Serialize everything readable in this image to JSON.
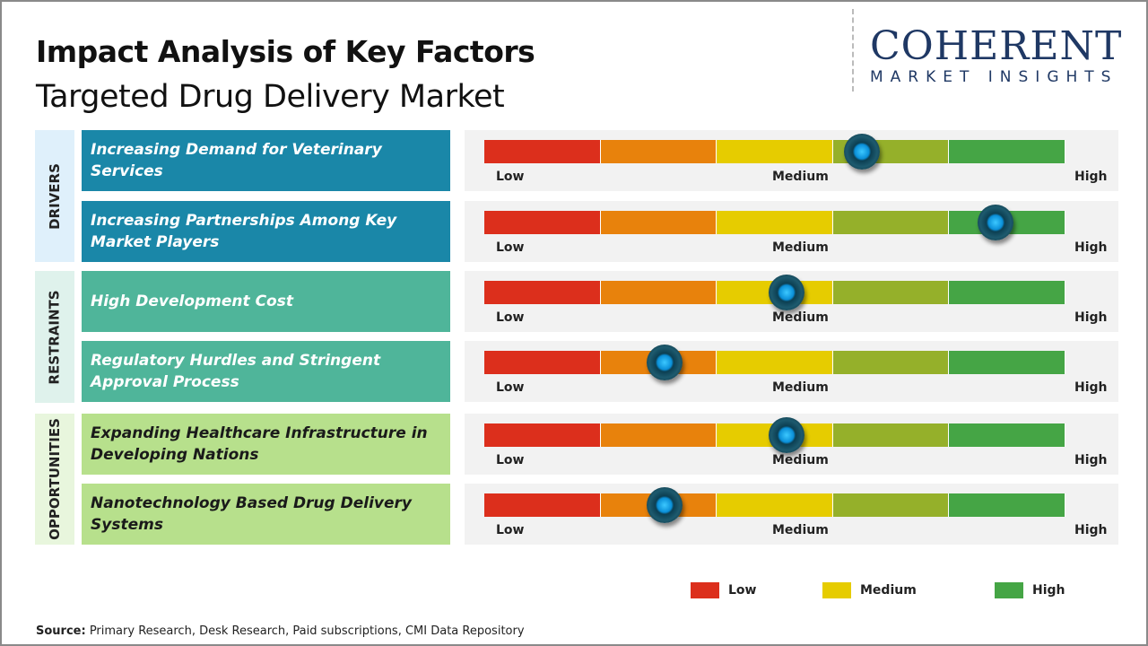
{
  "title": "Impact Analysis of Key Factors",
  "subtitle": "Targeted Drug Delivery Market",
  "logo": {
    "main": "COHERENT",
    "sub": "MARKET INSIGHTS"
  },
  "scale_colors": [
    "#dc2f1c",
    "#e8820c",
    "#e6cc00",
    "#95b02a",
    "#45a545"
  ],
  "scale_labels": {
    "low": "Low",
    "medium": "Medium",
    "high": "High"
  },
  "categories": [
    {
      "name": "DRIVERS",
      "bg": "#dff0fb",
      "box": "#1a87a8",
      "text": "#ffffff"
    },
    {
      "name": "RESTRAINTS",
      "bg": "#dff2ec",
      "box": "#4fb59a",
      "text": "#ffffff"
    },
    {
      "name": "OPPORTUNITIES",
      "bg": "#e8f6dd",
      "box": "#b7e08c",
      "text": "#1a1a1a"
    }
  ],
  "factors": [
    {
      "label": "Increasing Demand for Veterinary Services",
      "category": 0,
      "impact": 0.65
    },
    {
      "label": "Increasing Partnerships Among Key Market Players",
      "category": 0,
      "impact": 0.88
    },
    {
      "label": "High Development Cost",
      "category": 1,
      "impact": 0.52
    },
    {
      "label": "Regulatory Hurdles and Stringent Approval Process",
      "category": 1,
      "impact": 0.31
    },
    {
      "label": "Expanding Healthcare Infrastructure in Developing Nations",
      "category": 2,
      "impact": 0.52
    },
    {
      "label": "Nanotechnology Based Drug Delivery Systems",
      "category": 2,
      "impact": 0.31
    }
  ],
  "legend": [
    {
      "label": "Low",
      "color": "#dc2f1c"
    },
    {
      "label": "Medium",
      "color": "#e6cc00"
    },
    {
      "label": "High",
      "color": "#45a545"
    }
  ],
  "source": {
    "prefix": "Source:",
    "text": " Primary Research, Desk Research, Paid subscriptions, CMI Data Repository"
  }
}
